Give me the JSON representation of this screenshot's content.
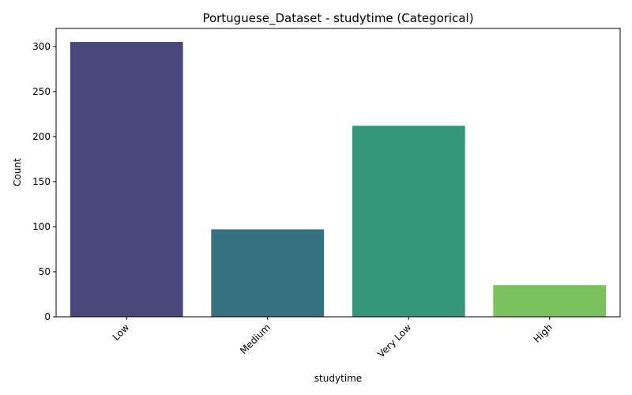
{
  "chart_data": {
    "type": "bar",
    "title": "Portuguese_Dataset - studytime (Categorical)",
    "xlabel": "studytime",
    "ylabel": "Count",
    "categories": [
      "Low",
      "Medium",
      "Very Low",
      "High"
    ],
    "values": [
      305,
      97,
      212,
      35
    ],
    "colors": [
      "#48487e",
      "#35717f",
      "#34997a",
      "#7ac35c"
    ],
    "ylim": [
      0,
      320
    ],
    "yticks": [
      0,
      50,
      100,
      150,
      200,
      250,
      300
    ],
    "xtick_rotation": 45,
    "grid": false
  }
}
